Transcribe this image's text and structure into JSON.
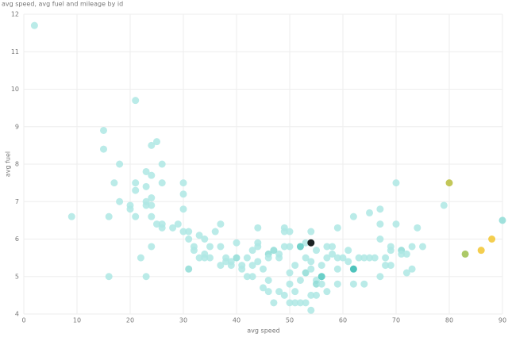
{
  "chart_data": {
    "type": "scatter",
    "title": "avg speed, avg fuel and mileage by id",
    "x_label": "avg speed",
    "y_label": "avg fuel",
    "xlim": [
      0,
      90
    ],
    "ylim": [
      4,
      12
    ],
    "xticks": [
      0,
      10,
      20,
      30,
      40,
      50,
      60,
      70,
      80,
      90
    ],
    "yticks": [
      4,
      5,
      6,
      7,
      8,
      9,
      10,
      11,
      12
    ],
    "grid": true,
    "x": [
      2,
      21,
      15,
      15,
      24,
      25,
      18,
      26,
      23,
      24,
      17,
      21,
      21,
      23,
      24,
      26,
      30,
      30,
      18,
      20,
      20,
      23,
      23,
      24,
      9,
      16,
      21,
      24,
      25,
      26,
      26,
      28,
      29,
      30,
      30,
      31,
      31,
      33,
      34,
      36,
      37,
      24,
      22,
      16,
      23,
      31,
      32,
      32,
      33,
      34,
      34,
      35,
      35,
      37,
      37,
      38,
      38,
      39,
      39,
      40,
      40,
      41,
      41,
      42,
      42,
      43,
      43,
      43,
      44,
      44,
      44,
      44,
      45,
      45,
      46,
      46,
      46,
      46,
      47,
      48,
      48,
      48,
      49,
      49,
      49,
      49,
      50,
      50,
      50,
      50,
      50,
      51,
      51,
      51,
      52,
      52,
      53,
      53,
      53,
      53,
      54,
      54,
      54,
      54,
      54,
      54,
      55,
      55,
      55,
      55,
      56,
      56,
      56,
      57,
      57,
      57,
      58,
      58,
      59,
      59,
      59,
      59,
      60,
      61,
      61,
      62,
      62,
      62,
      63,
      64,
      64,
      65,
      65,
      66,
      67,
      67,
      67,
      67,
      68,
      68,
      69,
      69,
      69,
      70,
      70,
      71,
      71,
      72,
      72,
      73,
      73,
      74,
      75,
      79,
      80,
      83,
      86,
      88,
      90,
      47,
      52,
      56,
      54
    ],
    "values": [
      11.7,
      9.7,
      8.9,
      8.4,
      8.5,
      8.6,
      8,
      8,
      7.8,
      7.7,
      7.5,
      7.5,
      7.3,
      7.4,
      7.1,
      7.5,
      7.5,
      7.2,
      7,
      6.9,
      6.8,
      7,
      6.9,
      6.9,
      6.6,
      6.6,
      6.6,
      6.6,
      6.4,
      6.4,
      6.3,
      6.3,
      6.4,
      6.8,
      6.2,
      6.2,
      6,
      6.1,
      6,
      6.2,
      6.4,
      5.8,
      5.5,
      5,
      5,
      5.2,
      5.8,
      5.7,
      5.5,
      5.6,
      5.5,
      5.5,
      5.8,
      5.8,
      5.3,
      5.5,
      5.4,
      5.4,
      5.3,
      5.5,
      5.9,
      5.2,
      5.3,
      5.5,
      5,
      5.7,
      5.3,
      5,
      5.8,
      6.3,
      5.9,
      5.4,
      5.2,
      4.7,
      4.6,
      5.6,
      5.5,
      4.9,
      4.3,
      5.6,
      5.5,
      4.6,
      6.3,
      6.2,
      5.8,
      4.5,
      6.2,
      5.8,
      5.1,
      4.8,
      4.3,
      4.3,
      5.3,
      4.6,
      4.9,
      4.3,
      5.9,
      5.5,
      4.3,
      5.1,
      6.2,
      5.9,
      5.4,
      5.2,
      4.5,
      4.1,
      5.7,
      4.9,
      4.8,
      4.5,
      5,
      4.8,
      5.3,
      5.5,
      5.8,
      4.6,
      5.8,
      5.6,
      6.3,
      5.5,
      5.2,
      4.8,
      5.5,
      5.7,
      5.4,
      6.6,
      5.2,
      4.8,
      5.5,
      5.5,
      4.8,
      6.7,
      5.5,
      5.5,
      6.8,
      6.4,
      6,
      5,
      5.5,
      5.3,
      5.8,
      5.7,
      5.3,
      7.5,
      6.4,
      5.7,
      5.6,
      5.6,
      5.1,
      5.8,
      5.2,
      6.3,
      5.8,
      6.9,
      7.5,
      5.6,
      5.7,
      6,
      6.5,
      5.7,
      5.8,
      5,
      5.9
    ],
    "colors": [
      "#aee8e4",
      "#aee8e4",
      "#aee8e4",
      "#aee8e4",
      "#aee8e4",
      "#aee8e4",
      "#aee8e4",
      "#aee8e4",
      "#aee8e4",
      "#aee8e4",
      "#aee8e4",
      "#aee8e4",
      "#aee8e4",
      "#aee8e4",
      "#aee8e4",
      "#aee8e4",
      "#aee8e4",
      "#aee8e4",
      "#aee8e4",
      "#aee8e4",
      "#aee8e4",
      "#aee8e4",
      "#aee8e4",
      "#aee8e4",
      "#aee8e4",
      "#aee8e4",
      "#aee8e4",
      "#aee8e4",
      "#aee8e4",
      "#aee8e4",
      "#aee8e4",
      "#aee8e4",
      "#aee8e4",
      "#aee8e4",
      "#aee8e4",
      "#aee8e4",
      "#aee8e4",
      "#aee8e4",
      "#aee8e4",
      "#aee8e4",
      "#aee8e4",
      "#aee8e4",
      "#aee8e4",
      "#aee8e4",
      "#aee8e4",
      "#8fdcd6",
      "#aee8e4",
      "#aee8e4",
      "#aee8e4",
      "#aee8e4",
      "#aee8e4",
      "#aee8e4",
      "#aee8e4",
      "#aee8e4",
      "#aee8e4",
      "#aee8e4",
      "#aee8e4",
      "#aee8e4",
      "#aee8e4",
      "#8fdcd6",
      "#aee8e4",
      "#aee8e4",
      "#aee8e4",
      "#aee8e4",
      "#aee8e4",
      "#aee8e4",
      "#aee8e4",
      "#aee8e4",
      "#aee8e4",
      "#aee8e4",
      "#aee8e4",
      "#aee8e4",
      "#aee8e4",
      "#aee8e4",
      "#aee8e4",
      "#8fdcd6",
      "#aee8e4",
      "#aee8e4",
      "#aee8e4",
      "#aee8e4",
      "#aee8e4",
      "#aee8e4",
      "#aee8e4",
      "#aee8e4",
      "#aee8e4",
      "#aee8e4",
      "#aee8e4",
      "#aee8e4",
      "#aee8e4",
      "#aee8e4",
      "#aee8e4",
      "#aee8e4",
      "#aee8e4",
      "#aee8e4",
      "#aee8e4",
      "#aee8e4",
      "#aee8e4",
      "#aee8e4",
      "#aee8e4",
      "#8fdcd6",
      "#aee8e4",
      "#aee8e4",
      "#aee8e4",
      "#aee8e4",
      "#aee8e4",
      "#aee8e4",
      "#aee8e4",
      "#aee8e4",
      "#8fdcd6",
      "#aee8e4",
      "#aee8e4",
      "#aee8e4",
      "#aee8e4",
      "#aee8e4",
      "#aee8e4",
      "#aee8e4",
      "#aee8e4",
      "#aee8e4",
      "#aee8e4",
      "#aee8e4",
      "#aee8e4",
      "#aee8e4",
      "#aee8e4",
      "#aee8e4",
      "#aee8e4",
      "#aee8e4",
      "#2fb9b0",
      "#aee8e4",
      "#aee8e4",
      "#aee8e4",
      "#aee8e4",
      "#aee8e4",
      "#aee8e4",
      "#aee8e4",
      "#aee8e4",
      "#aee8e4",
      "#aee8e4",
      "#aee8e4",
      "#aee8e4",
      "#aee8e4",
      "#aee8e4",
      "#aee8e4",
      "#aee8e4",
      "#aee8e4",
      "#aee8e4",
      "#8fdcd6",
      "#aee8e4",
      "#aee8e4",
      "#aee8e4",
      "#aee8e4",
      "#aee8e4",
      "#aee8e4",
      "#aee8e4",
      "#aee8e4",
      "#b8bd3c",
      "#9dc04c",
      "#f2c530",
      "#f2c530",
      "#8fdcd6",
      "#8fdcd6",
      "#5ccac2",
      "#5ccac2"
    ]
  }
}
